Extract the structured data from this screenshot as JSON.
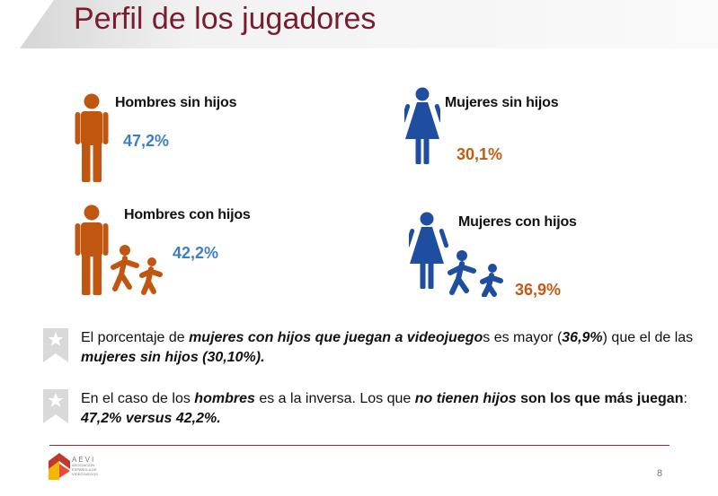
{
  "header": {
    "title": "Perfil de los jugadores"
  },
  "groups": {
    "men_no_kids": {
      "label": "Hombres sin hijos",
      "value": "47,2%"
    },
    "women_no_kids": {
      "label": "Mujeres sin hijos",
      "value": "30,1%"
    },
    "men_kids": {
      "label": "Hombres con hijos",
      "value": "42,2%"
    },
    "women_kids": {
      "label": "Mujeres con hijos",
      "value": "36,9%"
    }
  },
  "bullets": [
    {
      "p1": "El porcentaje de ",
      "e1": "mujeres con hijos que juegan a videojuego",
      "p2": "s es mayor (",
      "e2": "36,9%",
      "p3": ") que el de las ",
      "e3": "mujeres sin hijos (30,10%)."
    },
    {
      "p1": "En el caso de los ",
      "e1": "hombres",
      "p2": " es a la inversa. Los que ",
      "e2": "no tienen hijos",
      "b1": " son los que más juegan",
      "p3": ": ",
      "e3": "47,2% versus 42,2%."
    }
  ],
  "footer": {
    "logo_name": "AEVI",
    "logo_sub": "ASOCIACIÓN ESPAÑOLA DE VIDEOJUEGOS",
    "page_number": "8"
  },
  "colors": {
    "brand": "#7a1c2e",
    "blue": "#3f7fc1",
    "orange": "#c45a12",
    "man_icon": "#c0560f",
    "woman_icon": "#1f4ea0"
  }
}
